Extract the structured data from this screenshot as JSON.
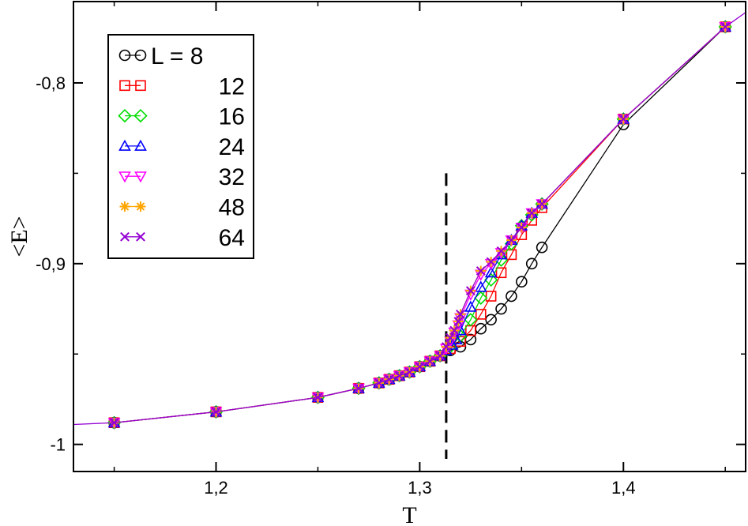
{
  "chart_data": {
    "type": "line",
    "title": "",
    "xlabel": "T",
    "ylabel": "<E>",
    "xlim": [
      1.13,
      1.46
    ],
    "ylim": [
      -1.015,
      -0.755
    ],
    "x_ticks": [
      1.2,
      1.3,
      1.4
    ],
    "x_tick_labels": [
      "1,2",
      "1,3",
      "1,4"
    ],
    "y_ticks": [
      -1.0,
      -0.9,
      -0.8
    ],
    "y_tick_labels": [
      "-1",
      "-0,9",
      "-0,8"
    ],
    "grid": false,
    "legend_position": "top-left",
    "vertical_dashed_line_x": 1.313,
    "vertical_dashed_line_y_range": [
      -1.008,
      -0.85
    ],
    "curve_extends": {
      "x_start": 1.13,
      "y_start": -0.989,
      "x_end": 1.46,
      "y_end": -0.761
    },
    "series": [
      {
        "name": "L = 8",
        "marker": "circle",
        "color": "#000000",
        "x": [
          1.15,
          1.2,
          1.25,
          1.27,
          1.28,
          1.285,
          1.29,
          1.295,
          1.3,
          1.305,
          1.31,
          1.315,
          1.32,
          1.325,
          1.33,
          1.335,
          1.34,
          1.345,
          1.35,
          1.355,
          1.36,
          1.4,
          1.45
        ],
        "y": [
          -0.988,
          -0.982,
          -0.974,
          -0.969,
          -0.966,
          -0.964,
          -0.962,
          -0.96,
          -0.957,
          -0.954,
          -0.951,
          -0.948,
          -0.946,
          -0.942,
          -0.936,
          -0.931,
          -0.925,
          -0.918,
          -0.91,
          -0.9,
          -0.891,
          -0.823,
          -0.769
        ]
      },
      {
        "name": "12",
        "marker": "square",
        "color": "#ff0000",
        "x": [
          1.15,
          1.2,
          1.25,
          1.27,
          1.28,
          1.285,
          1.29,
          1.295,
          1.3,
          1.305,
          1.31,
          1.315,
          1.32,
          1.325,
          1.33,
          1.335,
          1.34,
          1.345,
          1.35,
          1.355,
          1.36,
          1.4,
          1.45
        ],
        "y": [
          -0.988,
          -0.982,
          -0.974,
          -0.969,
          -0.966,
          -0.964,
          -0.962,
          -0.96,
          -0.957,
          -0.954,
          -0.951,
          -0.947,
          -0.943,
          -0.937,
          -0.928,
          -0.918,
          -0.905,
          -0.895,
          -0.884,
          -0.876,
          -0.869,
          -0.82,
          -0.769
        ]
      },
      {
        "name": "16",
        "marker": "diamond",
        "color": "#00dd00",
        "x": [
          1.15,
          1.2,
          1.25,
          1.27,
          1.28,
          1.285,
          1.29,
          1.295,
          1.3,
          1.305,
          1.31,
          1.315,
          1.32,
          1.325,
          1.33,
          1.335,
          1.34,
          1.345,
          1.35,
          1.355,
          1.36,
          1.4,
          1.45
        ],
        "y": [
          -0.988,
          -0.982,
          -0.974,
          -0.969,
          -0.966,
          -0.964,
          -0.962,
          -0.96,
          -0.957,
          -0.954,
          -0.951,
          -0.946,
          -0.94,
          -0.931,
          -0.919,
          -0.909,
          -0.898,
          -0.889,
          -0.879,
          -0.873,
          -0.867,
          -0.82,
          -0.769
        ]
      },
      {
        "name": "24",
        "marker": "triangle-up",
        "color": "#0000ff",
        "x": [
          1.15,
          1.2,
          1.25,
          1.27,
          1.28,
          1.285,
          1.29,
          1.295,
          1.3,
          1.305,
          1.31,
          1.313,
          1.316,
          1.318,
          1.32,
          1.325,
          1.33,
          1.335,
          1.34,
          1.345,
          1.35,
          1.355,
          1.36,
          1.4,
          1.45
        ],
        "y": [
          -0.988,
          -0.982,
          -0.974,
          -0.969,
          -0.966,
          -0.964,
          -0.962,
          -0.96,
          -0.957,
          -0.954,
          -0.951,
          -0.948,
          -0.945,
          -0.942,
          -0.937,
          -0.924,
          -0.913,
          -0.905,
          -0.895,
          -0.887,
          -0.879,
          -0.872,
          -0.867,
          -0.82,
          -0.769
        ]
      },
      {
        "name": "32",
        "marker": "triangle-down",
        "color": "#ff00ff",
        "x": [
          1.15,
          1.2,
          1.25,
          1.27,
          1.28,
          1.285,
          1.29,
          1.295,
          1.3,
          1.305,
          1.31,
          1.313,
          1.315,
          1.317,
          1.319,
          1.32,
          1.325,
          1.33,
          1.335,
          1.34,
          1.345,
          1.35,
          1.355,
          1.36,
          1.4,
          1.45
        ],
        "y": [
          -0.988,
          -0.982,
          -0.974,
          -0.969,
          -0.966,
          -0.964,
          -0.962,
          -0.96,
          -0.957,
          -0.954,
          -0.951,
          -0.947,
          -0.943,
          -0.938,
          -0.934,
          -0.93,
          -0.917,
          -0.906,
          -0.9,
          -0.894,
          -0.887,
          -0.88,
          -0.872,
          -0.867,
          -0.82,
          -0.769
        ]
      },
      {
        "name": "48",
        "marker": "star",
        "color": "#ffa500",
        "x": [
          1.15,
          1.2,
          1.25,
          1.27,
          1.28,
          1.285,
          1.29,
          1.295,
          1.3,
          1.305,
          1.31,
          1.313,
          1.315,
          1.317,
          1.319,
          1.32,
          1.325,
          1.33,
          1.335,
          1.34,
          1.345,
          1.35,
          1.355,
          1.36,
          1.4,
          1.45
        ],
        "y": [
          -0.988,
          -0.982,
          -0.974,
          -0.969,
          -0.966,
          -0.964,
          -0.962,
          -0.96,
          -0.957,
          -0.954,
          -0.951,
          -0.946,
          -0.941,
          -0.937,
          -0.932,
          -0.928,
          -0.915,
          -0.904,
          -0.899,
          -0.893,
          -0.887,
          -0.88,
          -0.872,
          -0.867,
          -0.82,
          -0.769
        ]
      },
      {
        "name": "64",
        "marker": "x",
        "color": "#9400d3",
        "x": [
          1.15,
          1.2,
          1.25,
          1.27,
          1.28,
          1.285,
          1.29,
          1.295,
          1.3,
          1.305,
          1.31,
          1.313,
          1.315,
          1.317,
          1.319,
          1.32,
          1.325,
          1.33,
          1.335,
          1.34,
          1.345,
          1.35,
          1.355,
          1.36,
          1.4,
          1.45
        ],
        "y": [
          -0.988,
          -0.982,
          -0.974,
          -0.969,
          -0.966,
          -0.964,
          -0.962,
          -0.96,
          -0.957,
          -0.954,
          -0.951,
          -0.946,
          -0.941,
          -0.937,
          -0.932,
          -0.928,
          -0.915,
          -0.904,
          -0.899,
          -0.893,
          -0.887,
          -0.88,
          -0.872,
          -0.867,
          -0.82,
          -0.769
        ]
      }
    ]
  }
}
